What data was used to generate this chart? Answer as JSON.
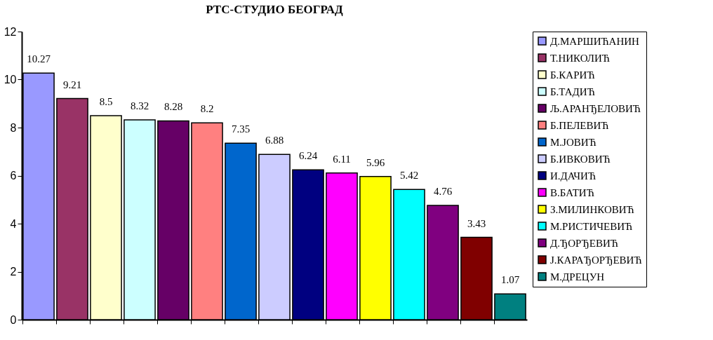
{
  "chart_data": {
    "type": "bar",
    "title": "РТС-СТУДИО БЕОГРАД",
    "categories": [
      null,
      null,
      null,
      null,
      null,
      null,
      null,
      null,
      null,
      null,
      null,
      null,
      null,
      null,
      null
    ],
    "series": [
      {
        "name": "Д.МАРШИЋАНИН",
        "color": "#9999ff",
        "values": [
          10.27,
          null,
          null,
          null,
          null,
          null,
          null,
          null,
          null,
          null,
          null,
          null,
          null,
          null,
          null
        ]
      },
      {
        "name": "Т.НИКОЛИЋ",
        "color": "#993366",
        "values": [
          null,
          9.21,
          null,
          null,
          null,
          null,
          null,
          null,
          null,
          null,
          null,
          null,
          null,
          null,
          null
        ]
      },
      {
        "name": "Б.КАРИЋ",
        "color": "#ffffcc",
        "values": [
          null,
          null,
          8.5,
          null,
          null,
          null,
          null,
          null,
          null,
          null,
          null,
          null,
          null,
          null,
          null
        ]
      },
      {
        "name": "Б.ТАДИЋ",
        "color": "#ccffff",
        "values": [
          null,
          null,
          null,
          8.32,
          null,
          null,
          null,
          null,
          null,
          null,
          null,
          null,
          null,
          null,
          null
        ]
      },
      {
        "name": "Љ.АРАНЂЕЛОВИЋ",
        "color": "#660066",
        "values": [
          null,
          null,
          null,
          null,
          8.28,
          null,
          null,
          null,
          null,
          null,
          null,
          null,
          null,
          null,
          null
        ]
      },
      {
        "name": "Б.ПЕЛЕВИЋ",
        "color": "#ff8080",
        "values": [
          null,
          null,
          null,
          null,
          null,
          8.2,
          null,
          null,
          null,
          null,
          null,
          null,
          null,
          null,
          null
        ]
      },
      {
        "name": "М.ЈОВИЋ",
        "color": "#0066cc",
        "values": [
          null,
          null,
          null,
          null,
          null,
          null,
          7.35,
          null,
          null,
          null,
          null,
          null,
          null,
          null,
          null
        ]
      },
      {
        "name": "Б.ИВКОВИЋ",
        "color": "#ccccff",
        "values": [
          null,
          null,
          null,
          null,
          null,
          null,
          null,
          6.88,
          null,
          null,
          null,
          null,
          null,
          null,
          null
        ]
      },
      {
        "name": "И.ДАЧИЋ",
        "color": "#000080",
        "values": [
          null,
          null,
          null,
          null,
          null,
          null,
          null,
          null,
          6.24,
          null,
          null,
          null,
          null,
          null,
          null
        ]
      },
      {
        "name": "В.БАТИЋ",
        "color": "#ff00ff",
        "values": [
          null,
          null,
          null,
          null,
          null,
          null,
          null,
          null,
          null,
          6.11,
          null,
          null,
          null,
          null,
          null
        ]
      },
      {
        "name": "З.МИЛИНКОВИЋ",
        "color": "#ffff00",
        "values": [
          null,
          null,
          null,
          null,
          null,
          null,
          null,
          null,
          null,
          null,
          5.96,
          null,
          null,
          null,
          null
        ]
      },
      {
        "name": "М.РИСТИЧЕВИЋ",
        "color": "#00ffff",
        "values": [
          null,
          null,
          null,
          null,
          null,
          null,
          null,
          null,
          null,
          null,
          null,
          5.42,
          null,
          null,
          null
        ]
      },
      {
        "name": "Д.ЂОРЂЕВИЋ",
        "color": "#800080",
        "values": [
          null,
          null,
          null,
          null,
          null,
          null,
          null,
          null,
          null,
          null,
          null,
          null,
          4.76,
          null,
          null
        ]
      },
      {
        "name": "Ј.КАРАЂОРЂЕВИЋ",
        "color": "#800000",
        "values": [
          null,
          null,
          null,
          null,
          null,
          null,
          null,
          null,
          null,
          null,
          null,
          null,
          null,
          3.43,
          null
        ]
      },
      {
        "name": "М.ДРЕЦУН",
        "color": "#008080",
        "values": [
          null,
          null,
          null,
          null,
          null,
          null,
          null,
          null,
          null,
          null,
          null,
          null,
          null,
          null,
          1.07
        ]
      }
    ],
    "ylim": [
      0,
      12
    ],
    "yticks": [
      0,
      2,
      4,
      6,
      8,
      10,
      12
    ],
    "data_labels": true,
    "legend": "right",
    "tick_labels": "y",
    "grid": false
  }
}
